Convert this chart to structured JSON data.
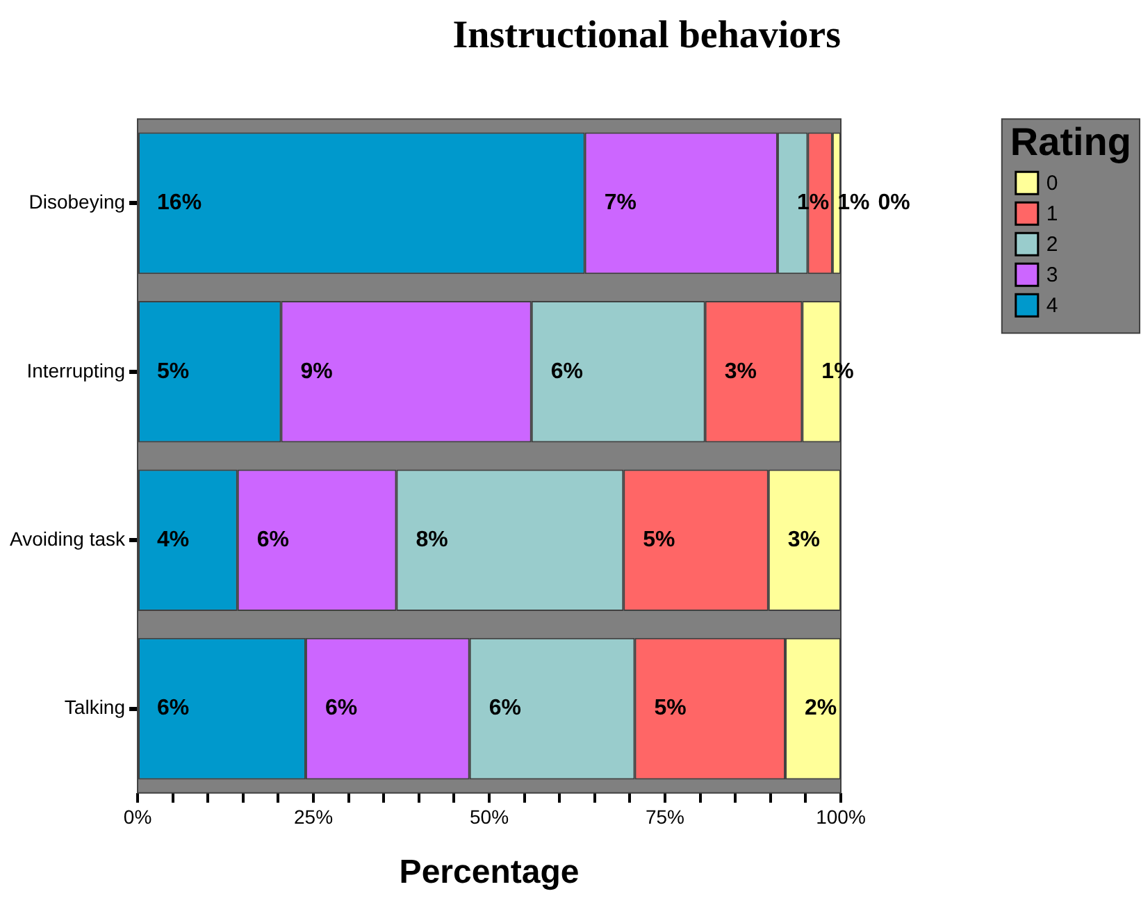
{
  "chart_data": {
    "type": "bar",
    "orientation": "horizontal",
    "stacked": true,
    "title": "Instructional behaviors",
    "xlabel": "Percentage",
    "legend_title": "Rating",
    "legend": "top right",
    "categories": [
      "Disobeying",
      "Interrupting",
      "Avoiding task",
      "Talking"
    ],
    "series": [
      {
        "name": "4",
        "color": "#0099cc",
        "values": [
          63.6,
          20.4,
          14.2,
          23.9
        ]
      },
      {
        "name": "3",
        "color": "#cc66ff",
        "values": [
          27.4,
          35.6,
          22.6,
          23.3
        ]
      },
      {
        "name": "2",
        "color": "#99cccc",
        "values": [
          4.3,
          24.7,
          32.3,
          23.5
        ]
      },
      {
        "name": "1",
        "color": "#ff6666",
        "values": [
          3.5,
          13.8,
          20.6,
          21.4
        ]
      },
      {
        "name": "0",
        "color": "#ffff99",
        "values": [
          1.2,
          5.5,
          10.3,
          7.9
        ]
      }
    ],
    "annotations": [
      {
        "text": "16%",
        "x": 0,
        "y": "Disobeying"
      },
      {
        "text": "7%",
        "x": 63.6,
        "y": "Disobeying"
      },
      {
        "text": "1%",
        "x": 91.0,
        "y": "Disobeying"
      },
      {
        "text": "1%",
        "x": 95.3,
        "y": "Disobeying"
      },
      {
        "text": "0%",
        "x": 98.8,
        "y": "Disobeying"
      },
      {
        "text": "5%",
        "x": 0,
        "y": "Interrupting"
      },
      {
        "text": "9%",
        "x": 20.4,
        "y": "Interrupting"
      },
      {
        "text": "6%",
        "x": 56.0,
        "y": "Interrupting"
      },
      {
        "text": "3%",
        "x": 80.7,
        "y": "Interrupting"
      },
      {
        "text": "1%",
        "x": 94.5,
        "y": "Interrupting"
      },
      {
        "text": "4%",
        "x": 0,
        "y": "Avoiding task"
      },
      {
        "text": "6%",
        "x": 14.2,
        "y": "Avoiding task"
      },
      {
        "text": "8%",
        "x": 36.8,
        "y": "Avoiding task"
      },
      {
        "text": "5%",
        "x": 69.1,
        "y": "Avoiding task"
      },
      {
        "text": "3%",
        "x": 89.7,
        "y": "Avoiding task"
      },
      {
        "text": "6%",
        "x": 0,
        "y": "Talking"
      },
      {
        "text": "6%",
        "x": 23.9,
        "y": "Talking"
      },
      {
        "text": "6%",
        "x": 47.2,
        "y": "Talking"
      },
      {
        "text": "5%",
        "x": 70.7,
        "y": "Talking"
      },
      {
        "text": "2%",
        "x": 92.1,
        "y": "Talking"
      }
    ],
    "xlim": [
      0,
      100
    ],
    "xticks": [
      {
        "value": 0,
        "label": "0%"
      },
      {
        "value": 5,
        "label": null
      },
      {
        "value": 10,
        "label": null
      },
      {
        "value": 15,
        "label": null
      },
      {
        "value": 20,
        "label": null
      },
      {
        "value": 25,
        "label": "25%"
      },
      {
        "value": 30,
        "label": null
      },
      {
        "value": 35,
        "label": null
      },
      {
        "value": 40,
        "label": null
      },
      {
        "value": 45,
        "label": null
      },
      {
        "value": 50,
        "label": "50%"
      },
      {
        "value": 55,
        "label": null
      },
      {
        "value": 60,
        "label": null
      },
      {
        "value": 65,
        "label": null
      },
      {
        "value": 70,
        "label": null
      },
      {
        "value": 75,
        "label": "75%"
      },
      {
        "value": 80,
        "label": null
      },
      {
        "value": 85,
        "label": null
      },
      {
        "value": 90,
        "label": null
      },
      {
        "value": 95,
        "label": null
      },
      {
        "value": 100,
        "label": "100%"
      }
    ]
  }
}
